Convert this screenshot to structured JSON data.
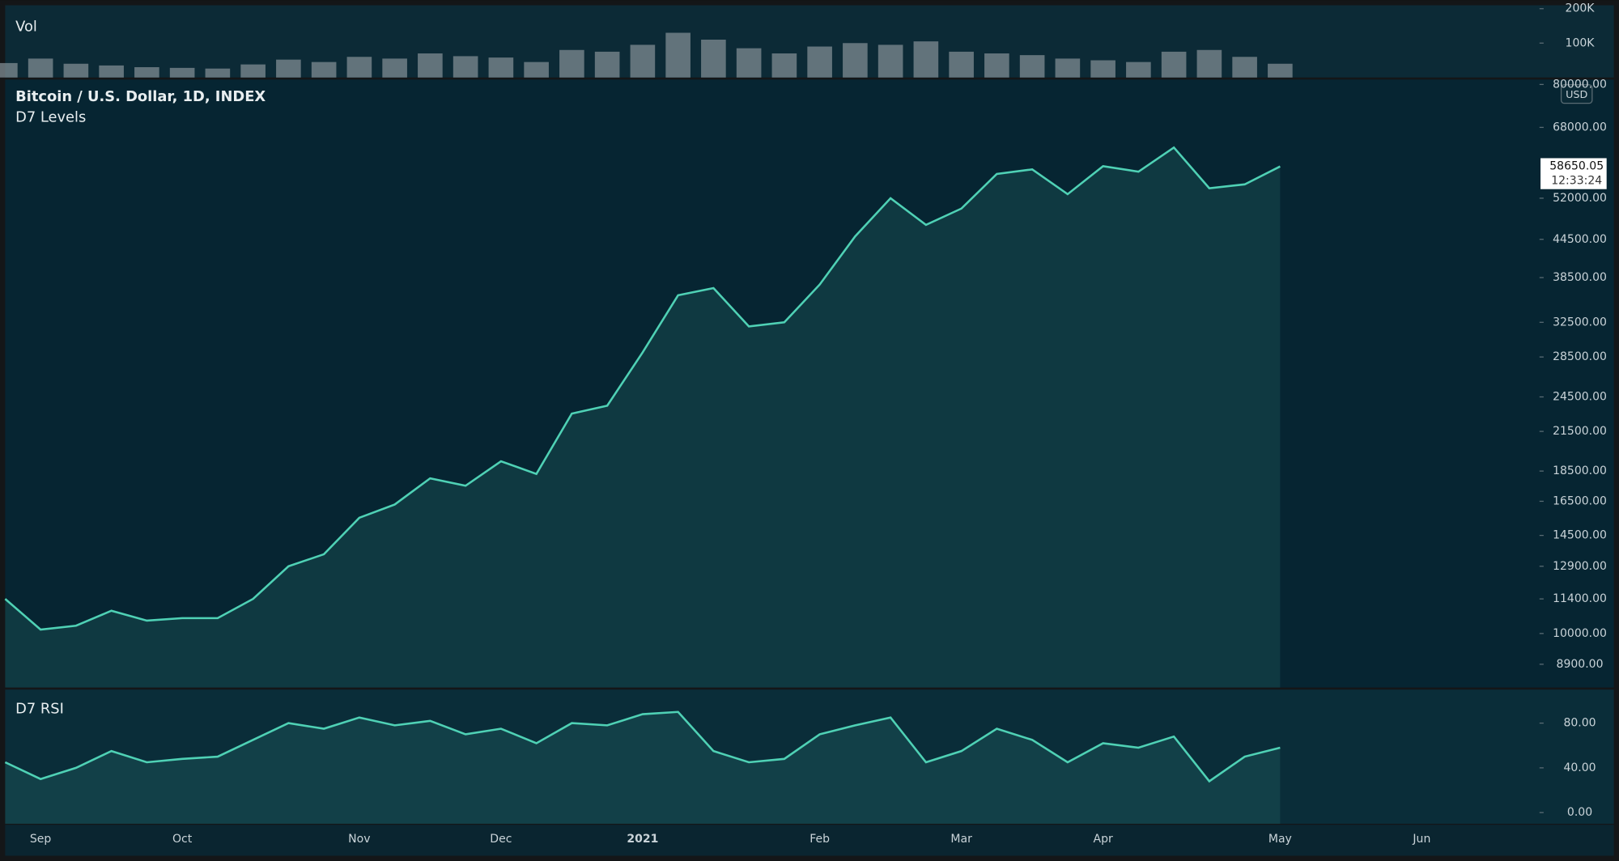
{
  "chart_data": [
    {
      "type": "bar",
      "title": "Vol",
      "color": "#7f8c93",
      "ylim": [
        0,
        210000
      ],
      "yticks": [
        {
          "value": 200000,
          "label": "200K"
        },
        {
          "value": 100000,
          "label": "100K"
        }
      ],
      "values": [
        42000,
        55000,
        40000,
        35000,
        30000,
        28000,
        26000,
        38000,
        52000,
        45000,
        60000,
        55000,
        70000,
        62000,
        58000,
        45000,
        80000,
        75000,
        95000,
        130000,
        110000,
        85000,
        70000,
        90000,
        100000,
        95000,
        105000,
        75000,
        70000,
        65000,
        55000,
        50000,
        45000,
        75000,
        80000,
        60000,
        40000,
        null,
        null,
        null,
        null,
        null,
        null,
        null
      ]
    },
    {
      "type": "line",
      "title": "Bitcoin / U.S. Dollar, 1D, INDEX",
      "subtitle": "D7 Levels",
      "currency": "USD",
      "color": "#4fd1b5",
      "log_scale": true,
      "ylim": [
        8150,
        81500
      ],
      "yticks": [
        {
          "value": 80000,
          "label": "80000.00"
        },
        {
          "value": 68000,
          "label": "68000.00"
        },
        {
          "value": 52000,
          "label": "52000.00"
        },
        {
          "value": 44500,
          "label": "44500.00"
        },
        {
          "value": 38500,
          "label": "38500.00"
        },
        {
          "value": 32500,
          "label": "32500.00"
        },
        {
          "value": 28500,
          "label": "28500.00"
        },
        {
          "value": 24500,
          "label": "24500.00"
        },
        {
          "value": 21500,
          "label": "21500.00"
        },
        {
          "value": 18500,
          "label": "18500.00"
        },
        {
          "value": 16500,
          "label": "16500.00"
        },
        {
          "value": 14500,
          "label": "14500.00"
        },
        {
          "value": 12900,
          "label": "12900.00"
        },
        {
          "value": 11400,
          "label": "11400.00"
        },
        {
          "value": 10000,
          "label": "10000.00"
        },
        {
          "value": 8900,
          "label": "8900.00"
        }
      ],
      "values": [
        11400,
        10150,
        10300,
        10900,
        10500,
        10600,
        10600,
        11400,
        12900,
        13500,
        15500,
        16300,
        18000,
        17500,
        19200,
        18300,
        23000,
        23700,
        29000,
        36000,
        37000,
        32000,
        32500,
        37500,
        45000,
        52000,
        47000,
        50000,
        57000,
        58000,
        52800,
        58700,
        57500,
        63000,
        54000,
        54800,
        58650.05,
        null,
        null,
        null,
        null,
        null,
        null,
        null
      ],
      "countdown": "12:33:24"
    },
    {
      "type": "line",
      "title": "D7 RSI",
      "color": "#4fd1b5",
      "ylim": [
        -10,
        110
      ],
      "yticks": [
        {
          "value": 80,
          "label": "80.00"
        },
        {
          "value": 40,
          "label": "40.00"
        },
        {
          "value": 0,
          "label": "0.00"
        }
      ],
      "values": [
        45,
        30,
        40,
        55,
        45,
        48,
        50,
        65,
        80,
        75,
        85,
        78,
        82,
        70,
        75,
        62,
        80,
        78,
        88,
        90,
        55,
        45,
        48,
        70,
        78,
        85,
        45,
        55,
        75,
        65,
        45,
        62,
        58,
        68,
        28,
        50,
        58,
        null,
        null,
        null,
        null,
        null,
        null,
        null
      ],
      "categories": [
        null,
        "Sep",
        null,
        null,
        null,
        "Oct",
        null,
        null,
        null,
        null,
        "Nov",
        null,
        null,
        null,
        "Dec",
        null,
        null,
        null,
        "2021",
        null,
        null,
        null,
        null,
        "Feb",
        null,
        null,
        null,
        "Mar",
        null,
        null,
        null,
        "Apr",
        null,
        null,
        null,
        null,
        "May",
        null,
        null,
        null,
        "Jun",
        null,
        null,
        null
      ]
    }
  ]
}
